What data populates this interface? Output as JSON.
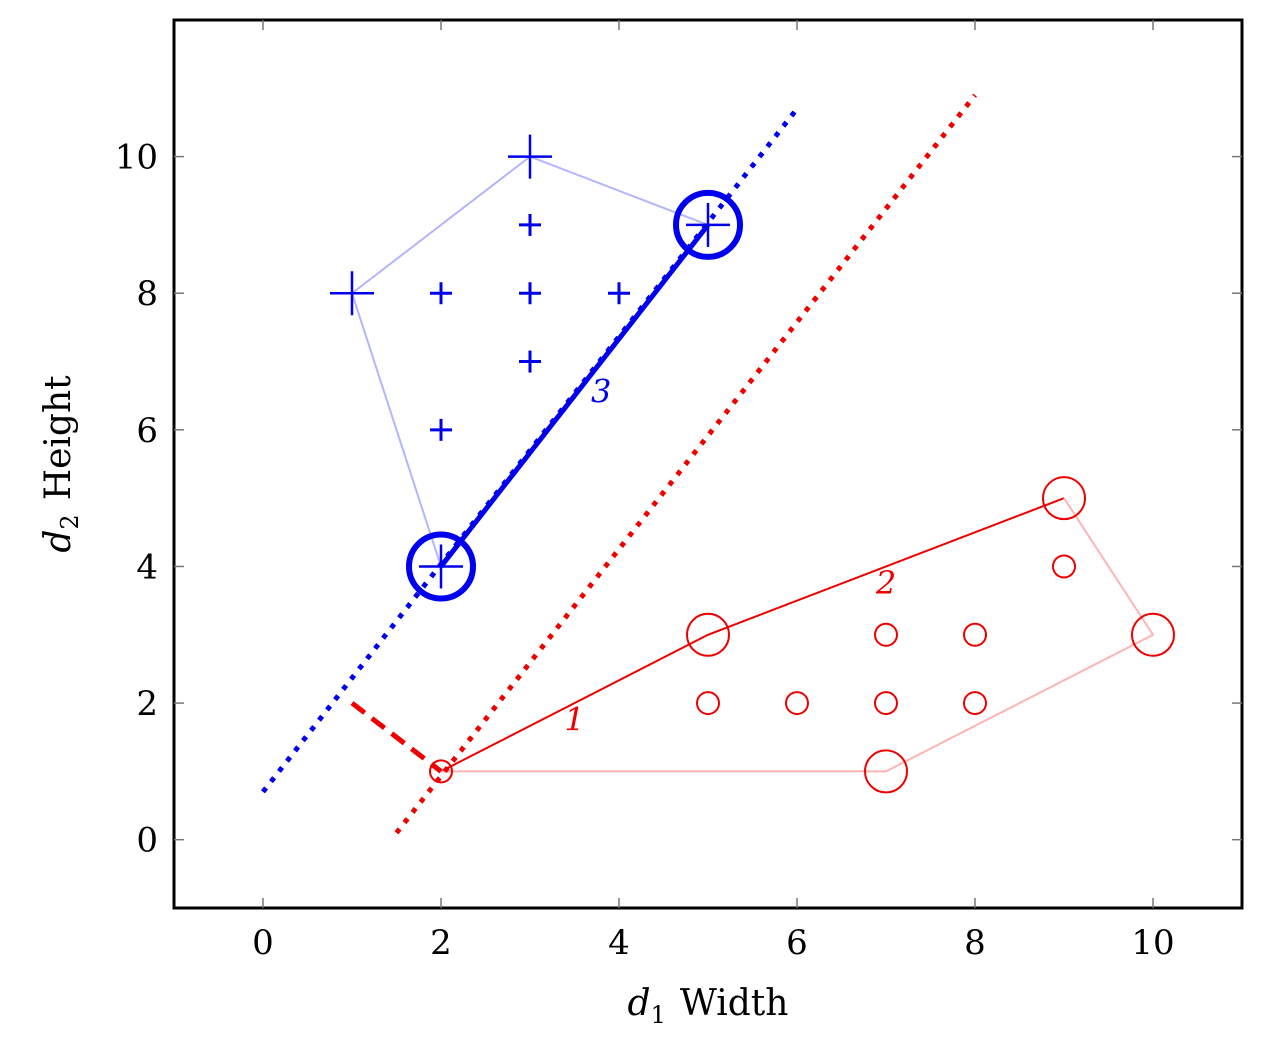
{
  "chart_data": {
    "type": "scatter",
    "title": "",
    "xlabel_var": "d",
    "xlabel_sub": "1",
    "xlabel_text": "Width",
    "ylabel_var": "d",
    "ylabel_sub": "2",
    "ylabel_text": "Height",
    "xlim": [
      -1,
      11
    ],
    "ylim": [
      -1,
      12
    ],
    "xticks": [
      0,
      2,
      4,
      6,
      8,
      10
    ],
    "yticks": [
      0,
      2,
      4,
      6,
      8,
      10
    ],
    "grid": false,
    "colors": {
      "blue": "#0000ee",
      "red": "#ee0000",
      "blue_light": "#b4b4ff",
      "red_light": "#ffb4b4"
    },
    "series": [
      {
        "marker": "plus",
        "color": "blue",
        "points": [
          [
            2,
            4
          ],
          [
            1,
            8
          ],
          [
            3,
            10
          ],
          [
            5,
            9
          ],
          [
            2,
            6
          ],
          [
            2,
            8
          ],
          [
            3,
            7
          ],
          [
            3,
            8
          ],
          [
            3,
            9
          ],
          [
            4,
            8
          ]
        ],
        "hull_vertices": [
          [
            1,
            8
          ],
          [
            3,
            10
          ],
          [
            5,
            9
          ]
        ],
        "support_vectors": [
          [
            2,
            4
          ],
          [
            5,
            9
          ]
        ]
      },
      {
        "marker": "circle",
        "color": "red",
        "points": [
          [
            2,
            1
          ],
          [
            5,
            3
          ],
          [
            9,
            5
          ],
          [
            10,
            3
          ],
          [
            7,
            1
          ],
          [
            5,
            2
          ],
          [
            6,
            2
          ],
          [
            7,
            2
          ],
          [
            7,
            3
          ],
          [
            8,
            2
          ],
          [
            8,
            3
          ],
          [
            9,
            4
          ]
        ],
        "hull_vertices": [
          [
            5,
            3
          ],
          [
            9,
            5
          ],
          [
            10,
            3
          ],
          [
            7,
            1
          ]
        ],
        "support_vectors": []
      }
    ],
    "hull_edges": [
      {
        "color": "blue_light",
        "path": [
          [
            2,
            4
          ],
          [
            1,
            8
          ],
          [
            3,
            10
          ],
          [
            5,
            9
          ]
        ]
      },
      {
        "color": "red",
        "path": [
          [
            2,
            1
          ],
          [
            5,
            3
          ],
          [
            9,
            5
          ]
        ]
      },
      {
        "color": "red_light",
        "path": [
          [
            9,
            5
          ],
          [
            10,
            3
          ],
          [
            7,
            1
          ],
          [
            2,
            1
          ]
        ]
      }
    ],
    "lines": [
      {
        "style": "dotted",
        "color": "blue",
        "from": [
          0,
          0.7
        ],
        "to": [
          6,
          10.7
        ]
      },
      {
        "style": "dotted",
        "color": "red",
        "from": [
          1.5,
          0.1
        ],
        "to": [
          8,
          10.9
        ]
      },
      {
        "style": "solid-thick",
        "color": "blue",
        "from": [
          2,
          4
        ],
        "to": [
          5,
          9
        ]
      },
      {
        "style": "dashed-thick",
        "color": "red",
        "from": [
          1,
          2
        ],
        "to": [
          2,
          1
        ]
      }
    ],
    "annotations": [
      {
        "text": "1",
        "x": 3.5,
        "y": 1.6,
        "color": "red"
      },
      {
        "text": "2",
        "x": 7.0,
        "y": 3.6,
        "color": "red"
      },
      {
        "text": "3",
        "x": 3.8,
        "y": 6.4,
        "color": "blue"
      }
    ]
  }
}
